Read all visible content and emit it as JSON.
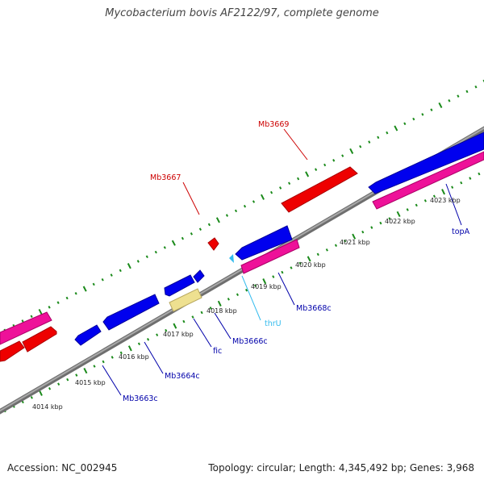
{
  "title": "Mycobacterium bovis AF2122/97, complete genome",
  "footer": {
    "accession": "Accession: NC_002945",
    "stats": "Topology: circular; Length: 4,345,492 bp; Genes: 3,968"
  },
  "colors": {
    "backbone": "#808080",
    "forward_gene": "#ee0000",
    "reverse_gene": "#0000ee",
    "pink_feature": "#ee1199",
    "trna": "#33bbee",
    "misc_feature": "#eee090",
    "tick": "#1a8a1a"
  },
  "ticks": [
    {
      "label": "4014 kbp"
    },
    {
      "label": "4015 kbp"
    },
    {
      "label": "4016 kbp"
    },
    {
      "label": "4017 kbp"
    },
    {
      "label": "4018 kbp"
    },
    {
      "label": "4019 kbp"
    },
    {
      "label": "4020 kbp"
    },
    {
      "label": "4021 kbp"
    },
    {
      "label": "4022 kbp"
    },
    {
      "label": "4023 kbp"
    }
  ],
  "gene_labels": [
    {
      "name": "Mb3669",
      "color": "#cc0000"
    },
    {
      "name": "Mb3667",
      "color": "#cc0000"
    },
    {
      "name": "topA",
      "color": "#0000aa"
    },
    {
      "name": "Mb3668c",
      "color": "#0000aa"
    },
    {
      "name": "thrU",
      "color": "#33bbee"
    },
    {
      "name": "Mb3666c",
      "color": "#0000aa"
    },
    {
      "name": "fic",
      "color": "#0000aa"
    },
    {
      "name": "Mb3664c",
      "color": "#0000aa"
    },
    {
      "name": "Mb3663c",
      "color": "#0000aa"
    }
  ]
}
